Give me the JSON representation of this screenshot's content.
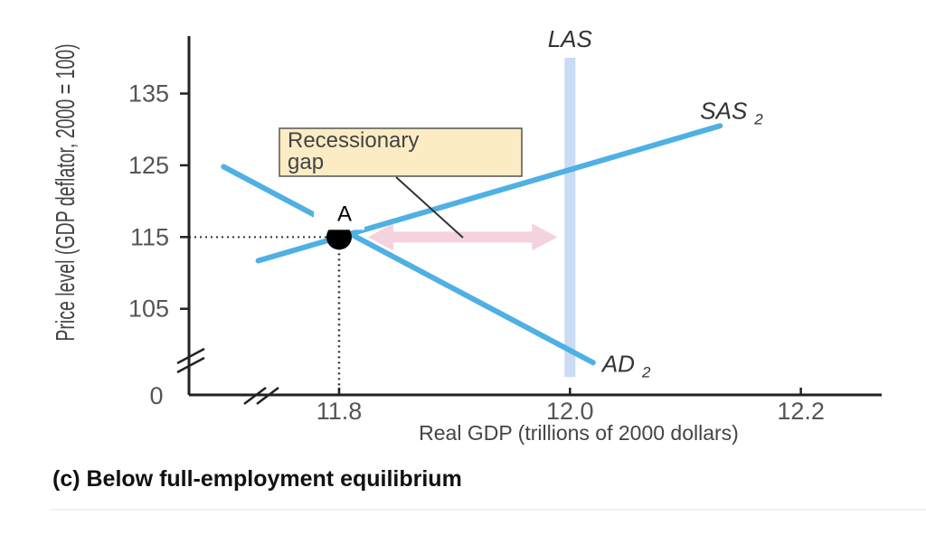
{
  "chart_data": {
    "type": "line",
    "caption": "(c) Below full-employment equilibrium",
    "xlabel": "Real GDP (trillions of 2000 dollars)",
    "ylabel": "Price level (GDP deflator, 2000 = 100)",
    "x_origin_label": "0",
    "xlim": [
      11.67,
      12.27
    ],
    "ylim": [
      93,
      143
    ],
    "x_ticks": [
      11.8,
      12.0,
      12.2
    ],
    "x_tick_labels": [
      "11.8",
      "12.0",
      "12.2"
    ],
    "y_ticks": [
      135,
      125,
      115,
      105
    ],
    "y_tick_labels": [
      "135",
      "125",
      "115",
      "105"
    ],
    "series": [
      {
        "name": "LAS",
        "curve_label": "LAS",
        "subscript": "",
        "color": "#c9dcf4",
        "points": [
          [
            12.0,
            140
          ],
          [
            12.0,
            95.5
          ]
        ]
      },
      {
        "name": "SAS2",
        "curve_label": "SAS",
        "subscript": "2",
        "color": "#4fb0e4",
        "points": [
          [
            11.73,
            111.7
          ],
          [
            12.13,
            130.5
          ]
        ]
      },
      {
        "name": "AD2",
        "curve_label": "AD",
        "subscript": "2",
        "color": "#4fb0e4",
        "points": [
          [
            11.7,
            124.8
          ],
          [
            12.02,
            97.5
          ]
        ]
      }
    ],
    "equilibrium": {
      "label": "A",
      "x": 11.8,
      "y": 115
    },
    "annotations": [
      {
        "text_lines": [
          "Recessionary",
          "gap"
        ],
        "from_x": 11.8,
        "to_x": 12.0,
        "y": 115,
        "color": "#f4d2de"
      }
    ]
  }
}
